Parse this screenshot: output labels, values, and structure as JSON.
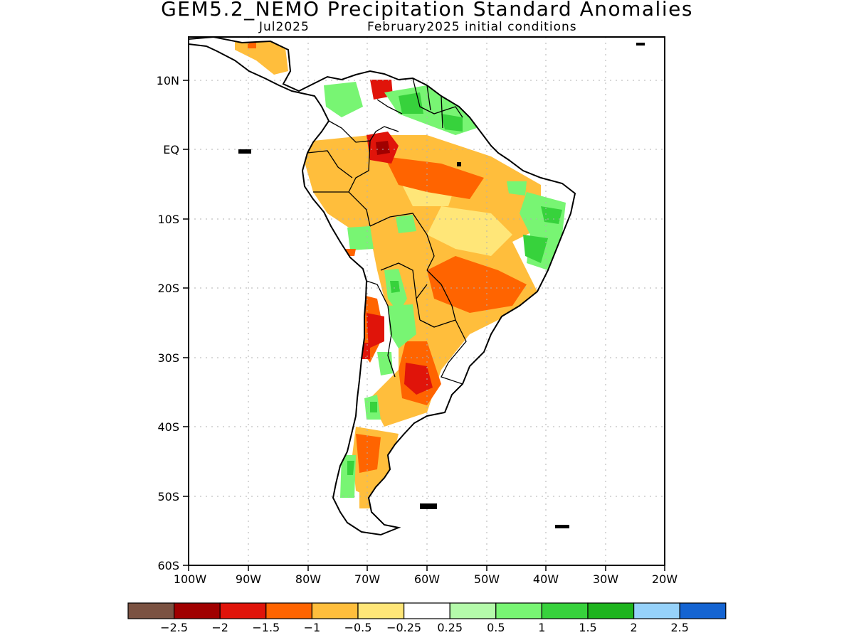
{
  "header": {
    "title": "GEM5.2_NEMO Precipitation Standard Anomalies",
    "target_month": "Jul2025",
    "init_conditions": "February2025 initial conditions"
  },
  "map": {
    "region": "South America",
    "lat_ticks": [
      "10N",
      "EQ",
      "10S",
      "20S",
      "30S",
      "40S",
      "50S",
      "60S"
    ],
    "lon_ticks": [
      "100W",
      "90W",
      "80W",
      "70W",
      "60W",
      "50W",
      "40W",
      "30W",
      "20W"
    ],
    "grid": true
  },
  "colorbar": {
    "colors": [
      "#7b5242",
      "#a00000",
      "#e0140a",
      "#ff6400",
      "#ffbe3c",
      "#ffe678",
      "#ffffff",
      "#b4faaa",
      "#78f573",
      "#37d23c",
      "#1eb41e",
      "#96d2fa",
      "#1464d2"
    ],
    "labels": [
      "-2.5",
      "-2",
      "-1.5",
      "-1",
      "-0.5",
      "-0.25",
      "0.25",
      "0.5",
      "1",
      "1.5",
      "2",
      "2.5"
    ]
  }
}
